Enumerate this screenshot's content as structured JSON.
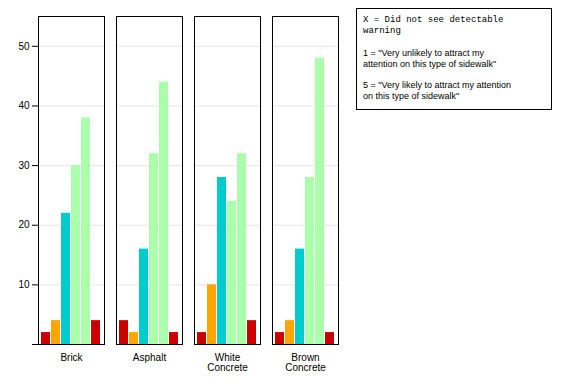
{
  "chart_data": {
    "type": "bar",
    "categories": [
      "Brick",
      "Asphalt",
      "White\nConcrete",
      "Brown\nConcrete"
    ],
    "series": [
      {
        "color": "#cc0000",
        "values": [
          2,
          4,
          2,
          2
        ]
      },
      {
        "color": "#ffa500",
        "values": [
          4,
          2,
          10,
          4
        ]
      },
      {
        "color": "#00cccc",
        "values": [
          22,
          16,
          28,
          16
        ]
      },
      {
        "color": "#aaffaa",
        "values": [
          30,
          32,
          24,
          28
        ]
      },
      {
        "color": "#aaffaa",
        "values": [
          38,
          44,
          32,
          48
        ]
      },
      {
        "color": "#cc0000",
        "values": [
          4,
          2,
          4,
          2
        ]
      }
    ],
    "ylim": [
      0,
      55
    ],
    "yticks": [
      {
        "value": 0,
        "label": ""
      },
      10,
      20,
      30,
      40,
      50
    ],
    "grid": true,
    "annotations": [
      "X = Did not see detectable warning",
      "1 = \"Very unlikely to attract my\nattention on this type of sidewalk\"",
      "5 = \"Very likely to attract my attention\non this type of sidewalk\""
    ]
  }
}
